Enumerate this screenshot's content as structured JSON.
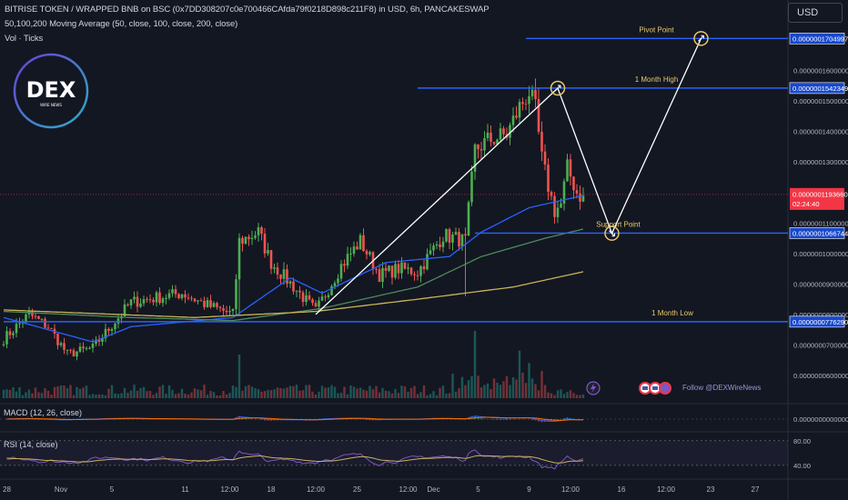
{
  "header": {
    "title": "BITRISE TOKEN / WRAPPED BNB on BSC (0x7DD308207c0e700466CAfda79f0218D898c211F8) in USD, 6h, PANCAKESWAP",
    "ma_label": "50,100,200 Moving Average (50, close, 100, close, 200, close)",
    "vol_label": "Vol · Ticks"
  },
  "currency_button": "USD",
  "logo": {
    "text": "DEX",
    "subtext": "WIRE NEWS"
  },
  "colors": {
    "background": "#131722",
    "up": "#26a69a",
    "up_bright": "#4caf50",
    "down": "#ef5350",
    "ma50": "#2962ff",
    "ma100": "#4f8a5b",
    "ma200": "#c9b458",
    "level_line": "#2962ff",
    "annotation_text": "#e8c86a",
    "price_badge": "#f23645",
    "level_badge": "#1848cc",
    "macd_line": "#2962ff",
    "signal_line": "#ff6d00",
    "rsi_line": "#7e57c2",
    "rsi_ma": "#c9b458"
  },
  "main_chart": {
    "y_ticks": [
      "0.0000001600000",
      "0.0000001500000",
      "0.0000001400000",
      "0.0000001300000",
      "0.0000001100000",
      "0.0000001000000",
      "0.0000000900000",
      "0.0000000800000",
      "0.0000000700000",
      "0.0000000600000"
    ],
    "y_tick_values": [
      1.6e-07,
      1.5e-07,
      1.4e-07,
      1.3e-07,
      1.1e-07,
      1e-07,
      9e-08,
      8e-08,
      7e-08,
      6e-08
    ],
    "current_price": {
      "label": "0.0000001193660",
      "value": 1.19366e-07,
      "countdown": "02:24:40"
    },
    "levels": [
      {
        "name": "Pivot Point",
        "label": "0.0000001704997",
        "value": 1.704997e-07
      },
      {
        "name": "1 Month High",
        "label": "0.0000001542349",
        "value": 1.542349e-07
      },
      {
        "name": "Support Point",
        "label": "0.0000001066744",
        "value": 1.066744e-07
      },
      {
        "name": "1 Month Low",
        "label": "0.0000000776290",
        "value": 7.7629e-08
      }
    ],
    "follow_text": "Follow @DEXWireNews",
    "projection_path": [
      {
        "bar": 98,
        "price": 8e-08
      },
      {
        "bar": 174,
        "price": 1.542e-07
      },
      {
        "bar": 191,
        "price": 1.066e-07
      },
      {
        "bar": 219,
        "price": 1.705e-07
      }
    ],
    "projection_markers": [
      "up",
      "down",
      "up"
    ],
    "x_ticks": [
      "28",
      "Nov",
      "5",
      "11",
      "12:00",
      "18",
      "12:00",
      "25",
      "12:00",
      "Dec",
      "5",
      "9",
      "12:00",
      "16",
      "12:00",
      "23",
      "27"
    ],
    "x_tick_bars": [
      1,
      18,
      34,
      57,
      71,
      84,
      98,
      111,
      127,
      135,
      149,
      165,
      178,
      194,
      208,
      222,
      236
    ]
  },
  "chart_data": {
    "type": "candlestick",
    "title": "BITRISE TOKEN / WRAPPED BNB on BSC (0x7DD308207c0e700466CAfda79f0218D898c211F8) in USD, 6h, PANCAKESWAP",
    "interval": "6h",
    "y_unit": "USD",
    "series": [
      {
        "name": "50",
        "kind": "moving_average"
      },
      {
        "name": "100",
        "kind": "moving_average"
      },
      {
        "name": "200",
        "kind": "moving_average"
      }
    ],
    "keyframes_close": [
      [
        0,
        7.2e-08
      ],
      [
        8,
        8e-08
      ],
      [
        14,
        7.6e-08
      ],
      [
        20,
        6.7e-08
      ],
      [
        28,
        6.9e-08
      ],
      [
        40,
        8.4e-08
      ],
      [
        56,
        8.7e-08
      ],
      [
        64,
        8.3e-08
      ],
      [
        72,
        8e-08
      ],
      [
        74,
        1.04e-07
      ],
      [
        80,
        1.07e-07
      ],
      [
        84,
        9.7e-08
      ],
      [
        92,
        8.8e-08
      ],
      [
        98,
        8.1e-08
      ],
      [
        106,
        9.6e-08
      ],
      [
        112,
        1.04e-07
      ],
      [
        118,
        9.3e-08
      ],
      [
        124,
        9.5e-08
      ],
      [
        130,
        9.4e-08
      ],
      [
        138,
        1.06e-07
      ],
      [
        142,
        1.05e-07
      ],
      [
        145,
        1.04e-07
      ],
      [
        148,
        1.34e-07
      ],
      [
        152,
        1.37e-07
      ],
      [
        158,
        1.39e-07
      ],
      [
        162,
        1.48e-07
      ],
      [
        165,
        1.53e-07
      ],
      [
        167,
        1.47e-07
      ],
      [
        169,
        1.31e-07
      ],
      [
        171,
        1.22e-07
      ],
      [
        173,
        1.14e-07
      ],
      [
        175,
        1.16e-07
      ],
      [
        177,
        1.28e-07
      ],
      [
        180,
        1.2e-07
      ],
      [
        182,
        1.18e-07
      ]
    ],
    "ma_keyframes": {
      "ma50": [
        [
          0,
          7.9e-08
        ],
        [
          28,
          7.1e-08
        ],
        [
          40,
          7.6e-08
        ],
        [
          72,
          7.9e-08
        ],
        [
          90,
          9.2e-08
        ],
        [
          100,
          8.7e-08
        ],
        [
          120,
          9.7e-08
        ],
        [
          140,
          9.9e-08
        ],
        [
          150,
          1.07e-07
        ],
        [
          165,
          1.15e-07
        ],
        [
          182,
          1.19e-07
        ]
      ],
      "ma100": [
        [
          0,
          8.1e-08
        ],
        [
          40,
          7.9e-08
        ],
        [
          72,
          7.8e-08
        ],
        [
          100,
          8.2e-08
        ],
        [
          130,
          8.9e-08
        ],
        [
          150,
          9.9e-08
        ],
        [
          170,
          1.05e-07
        ],
        [
          182,
          1.08e-07
        ]
      ],
      "ma200": [
        [
          0,
          8.15e-08
        ],
        [
          60,
          7.9e-08
        ],
        [
          98,
          8.1e-08
        ],
        [
          130,
          8.5e-08
        ],
        [
          160,
          8.9e-08
        ],
        [
          182,
          9.4e-08
        ]
      ]
    }
  },
  "macd_panel": {
    "label": "MACD (12, 26, close)",
    "y_tick": "0.0000000000000"
  },
  "rsi_panel": {
    "label": "RSI (14, close)",
    "y_ticks": [
      "80.00",
      "40.00"
    ],
    "y_tick_values": [
      80,
      40
    ]
  }
}
